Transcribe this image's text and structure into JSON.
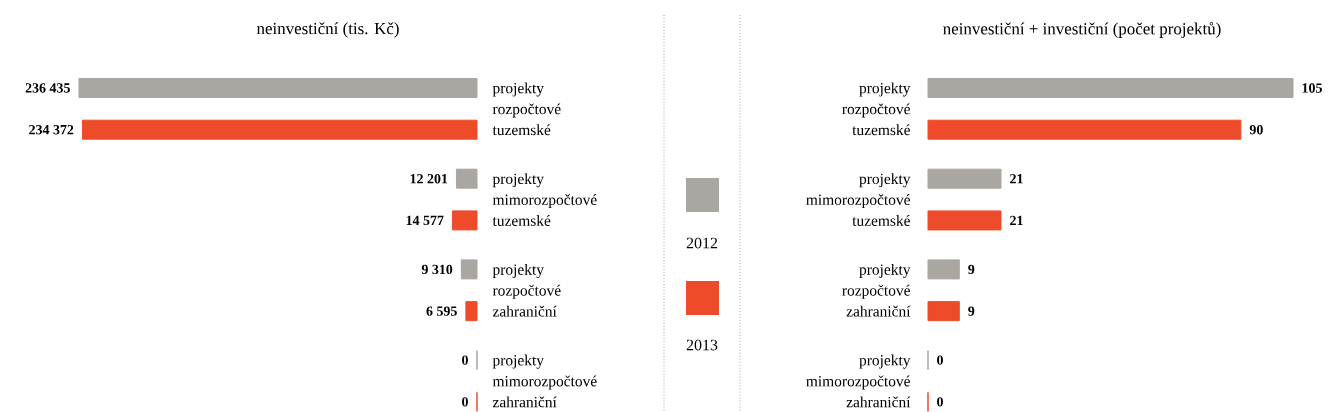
{
  "chart_data": [
    {
      "type": "bar",
      "orientation": "horizontal",
      "title": "neinvestiční (tis. Kč)",
      "categories": [
        "projekty rozpočtové tuzemské",
        "projekty mimorozpočtové tuzemské",
        "projekty rozpočtové zahraniční",
        "projekty mimorozpočtové zahraniční"
      ],
      "xlim": [
        237000,
        0
      ],
      "legend": "right",
      "series": [
        {
          "name": "2012",
          "color": "#aaa6a1",
          "values": [
            236435,
            12201,
            9310,
            0
          ],
          "value_labels": [
            "236 435",
            "12 201",
            "9 310",
            "0"
          ]
        },
        {
          "name": "2013",
          "color": "#ee4b2b",
          "values": [
            234372,
            14577,
            6595,
            0
          ],
          "value_labels": [
            "234 372",
            "14 577",
            "6 595",
            "0"
          ]
        }
      ]
    },
    {
      "type": "bar",
      "orientation": "horizontal",
      "title": "neinvestiční + investiční (počet projektů)",
      "categories": [
        "projekty rozpočtové tuzemské",
        "projekty mimorozpočtové tuzemské",
        "projekty rozpočtové zahraniční",
        "projekty mimorozpočtové zahraniční"
      ],
      "xlim": [
        0,
        105
      ],
      "series": [
        {
          "color": "#aaa6a1",
          "values": [
            105,
            21,
            9,
            0
          ],
          "value_labels": [
            "105",
            "21",
            "9",
            "0"
          ]
        },
        {
          "color": "#ee4b2b",
          "values": [
            90,
            21,
            9,
            0
          ],
          "value_labels": [
            "90",
            "21",
            "9",
            "0"
          ]
        }
      ]
    }
  ]
}
